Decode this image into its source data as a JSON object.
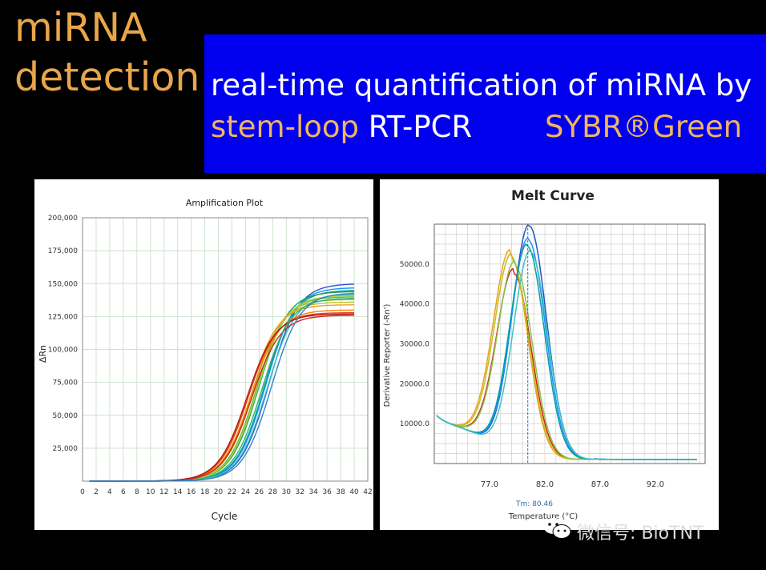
{
  "slide": {
    "title": "miRNA\ndetection",
    "banner_line1": "real-time quantification of miRNA by",
    "banner_line2_part1": "stem-loop",
    "banner_line2_part2": " RT-PCR",
    "banner_line2_part3": "SYBR®Green",
    "watermark": "微信号: BioTNT",
    "colors": {
      "title": "#e8a64a",
      "banner": "#0000ee",
      "accent": "#f1b560"
    }
  },
  "chart_data": [
    {
      "type": "line",
      "title": "Amplification Plot",
      "xlabel": "Cycle",
      "ylabel": "ΔRn",
      "xlim": [
        0,
        42
      ],
      "ylim": [
        0,
        200000
      ],
      "x_ticks": [
        "0",
        "2",
        "4",
        "6",
        "8",
        "10",
        "12",
        "14",
        "16",
        "18",
        "20",
        "22",
        "24",
        "26",
        "28",
        "30",
        "32",
        "34",
        "36",
        "38",
        "40",
        "42"
      ],
      "y_ticks": [
        "25,000",
        "50,000",
        "75,000",
        "100,000",
        "125,000",
        "150,000",
        "175,000",
        "200,000"
      ],
      "grid": true,
      "series": [
        {
          "color": "#2255cc",
          "midpoint": 27.5,
          "plateau": 150000
        },
        {
          "color": "#1e90ff",
          "midpoint": 27.0,
          "plateau": 147000
        },
        {
          "color": "#00a0a0",
          "midpoint": 26.8,
          "plateau": 145000
        },
        {
          "color": "#40c0c0",
          "midpoint": 27.2,
          "plateau": 142000
        },
        {
          "color": "#20a050",
          "midpoint": 26.0,
          "plateau": 144000
        },
        {
          "color": "#60c040",
          "midpoint": 25.6,
          "plateau": 140000
        },
        {
          "color": "#8bc34a",
          "midpoint": 25.2,
          "plateau": 138000
        },
        {
          "color": "#aad040",
          "midpoint": 25.8,
          "plateau": 141000
        },
        {
          "color": "#c0c020",
          "midpoint": 25.0,
          "plateau": 136000
        },
        {
          "color": "#f0a020",
          "midpoint": 24.6,
          "plateau": 134000
        },
        {
          "color": "#ff8000",
          "midpoint": 24.8,
          "plateau": 130000
        },
        {
          "color": "#e04010",
          "midpoint": 24.4,
          "plateau": 128000
        },
        {
          "color": "#d02020",
          "midpoint": 24.9,
          "plateau": 126000
        },
        {
          "color": "#b01818",
          "midpoint": 24.2,
          "plateau": 127000
        },
        {
          "color": "#30b070",
          "midpoint": 26.4,
          "plateau": 139000
        },
        {
          "color": "#3080d0",
          "midpoint": 27.8,
          "plateau": 143000
        }
      ]
    },
    {
      "type": "line",
      "title": "Melt Curve",
      "xlabel": "Temperature (°C)",
      "ylabel": "Derivative Reporter (-Rn')",
      "xlim": [
        72.0,
        96.5
      ],
      "ylim": [
        0,
        60000
      ],
      "x_ticks": [
        "77.0",
        "82.0",
        "87.0",
        "92.0"
      ],
      "y_ticks": [
        "10000.0",
        "20000.0",
        "30000.0",
        "40000.0",
        "50000.0"
      ],
      "grid": true,
      "tm_label": "Tm: 80.46",
      "tm_value": 80.46,
      "series": [
        {
          "color": "#d02020",
          "peak_temp": 79.2,
          "peak_height": 46500
        },
        {
          "color": "#f0a020",
          "peak_temp": 78.9,
          "peak_height": 51000
        },
        {
          "color": "#c0c020",
          "peak_temp": 79.0,
          "peak_height": 50000
        },
        {
          "color": "#8bc34a",
          "peak_temp": 79.3,
          "peak_height": 48500
        },
        {
          "color": "#2255cc",
          "peak_temp": 80.6,
          "peak_height": 58500
        },
        {
          "color": "#1e90ff",
          "peak_temp": 80.5,
          "peak_height": 55000
        },
        {
          "color": "#00a0a0",
          "peak_temp": 80.4,
          "peak_height": 53500
        },
        {
          "color": "#40c0c0",
          "peak_temp": 80.7,
          "peak_height": 52000
        }
      ]
    }
  ]
}
